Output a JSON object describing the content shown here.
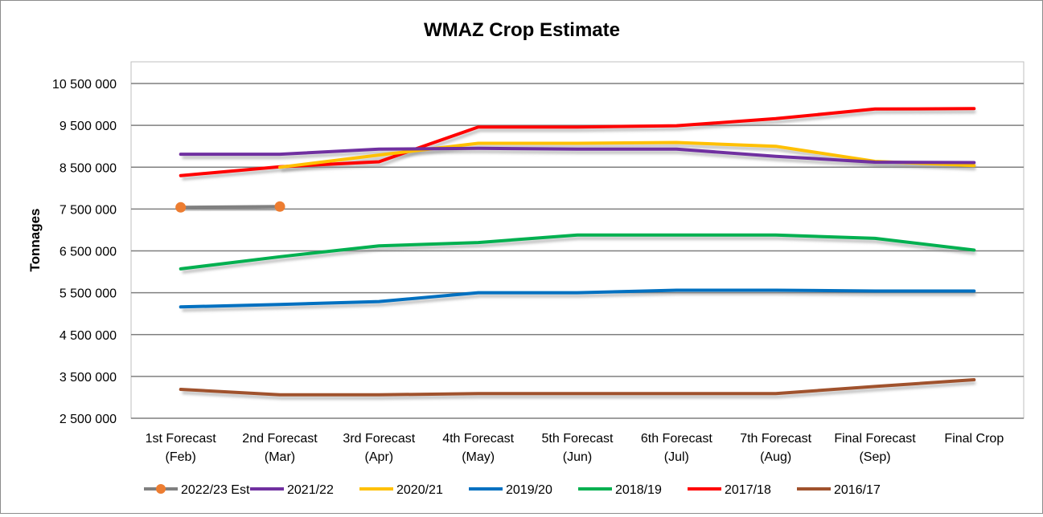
{
  "chart_data": {
    "type": "line",
    "title": "WMAZ Crop Estimate",
    "xlabel": "",
    "ylabel": "Tonnages",
    "ylim": [
      2500000,
      10500000
    ],
    "yticks": [
      2500000,
      3500000,
      4500000,
      5500000,
      6500000,
      7500000,
      8500000,
      9500000,
      10500000
    ],
    "ytick_labels": [
      "2 500 000",
      "3 500 000",
      "4 500 000",
      "5 500 000",
      "6 500 000",
      "7 500 000",
      "8 500 000",
      "9 500 000",
      "10 500 000"
    ],
    "categories": [
      [
        "1st Forecast",
        "(Feb)"
      ],
      [
        "2nd Forecast",
        "(Mar)"
      ],
      [
        "3rd Forecast",
        "(Apr)"
      ],
      [
        "4th Forecast",
        "(May)"
      ],
      [
        "5th Forecast",
        "(Jun)"
      ],
      [
        "6th Forecast",
        "(Jul)"
      ],
      [
        "7th Forecast",
        "(Aug)"
      ],
      [
        "Final Forecast",
        "(Sep)"
      ],
      [
        "Final Crop"
      ]
    ],
    "grid": true,
    "legend_position": "bottom",
    "series": [
      {
        "name": "2022/23 Est",
        "color": "#808080",
        "marker_color": "#ED7D31",
        "values": [
          7540000,
          7560000,
          null,
          null,
          null,
          null,
          null,
          null,
          null
        ]
      },
      {
        "name": "2021/22",
        "color": "#7030A0",
        "values": [
          8810000,
          8810000,
          8930000,
          8950000,
          8930000,
          8930000,
          8760000,
          8620000,
          8610000
        ]
      },
      {
        "name": "2020/21",
        "color": "#FFC000",
        "values": [
          null,
          8500000,
          8790000,
          9070000,
          9070000,
          9090000,
          9000000,
          8640000,
          8540000
        ]
      },
      {
        "name": "2019/20",
        "color": "#0070C0",
        "values": [
          5160000,
          5220000,
          5290000,
          5500000,
          5500000,
          5560000,
          5560000,
          5540000,
          5540000
        ]
      },
      {
        "name": "2018/19",
        "color": "#00B050",
        "values": [
          6070000,
          6360000,
          6620000,
          6700000,
          6880000,
          6880000,
          6880000,
          6800000,
          6520000
        ]
      },
      {
        "name": "2017/18",
        "color": "#FF0000",
        "values": [
          8300000,
          8510000,
          8630000,
          9460000,
          9460000,
          9490000,
          9660000,
          9890000,
          9900000
        ]
      },
      {
        "name": "2016/17",
        "color": "#A0522D",
        "values": [
          3190000,
          3060000,
          3060000,
          3090000,
          3090000,
          3090000,
          3090000,
          3260000,
          3420000
        ]
      }
    ]
  }
}
